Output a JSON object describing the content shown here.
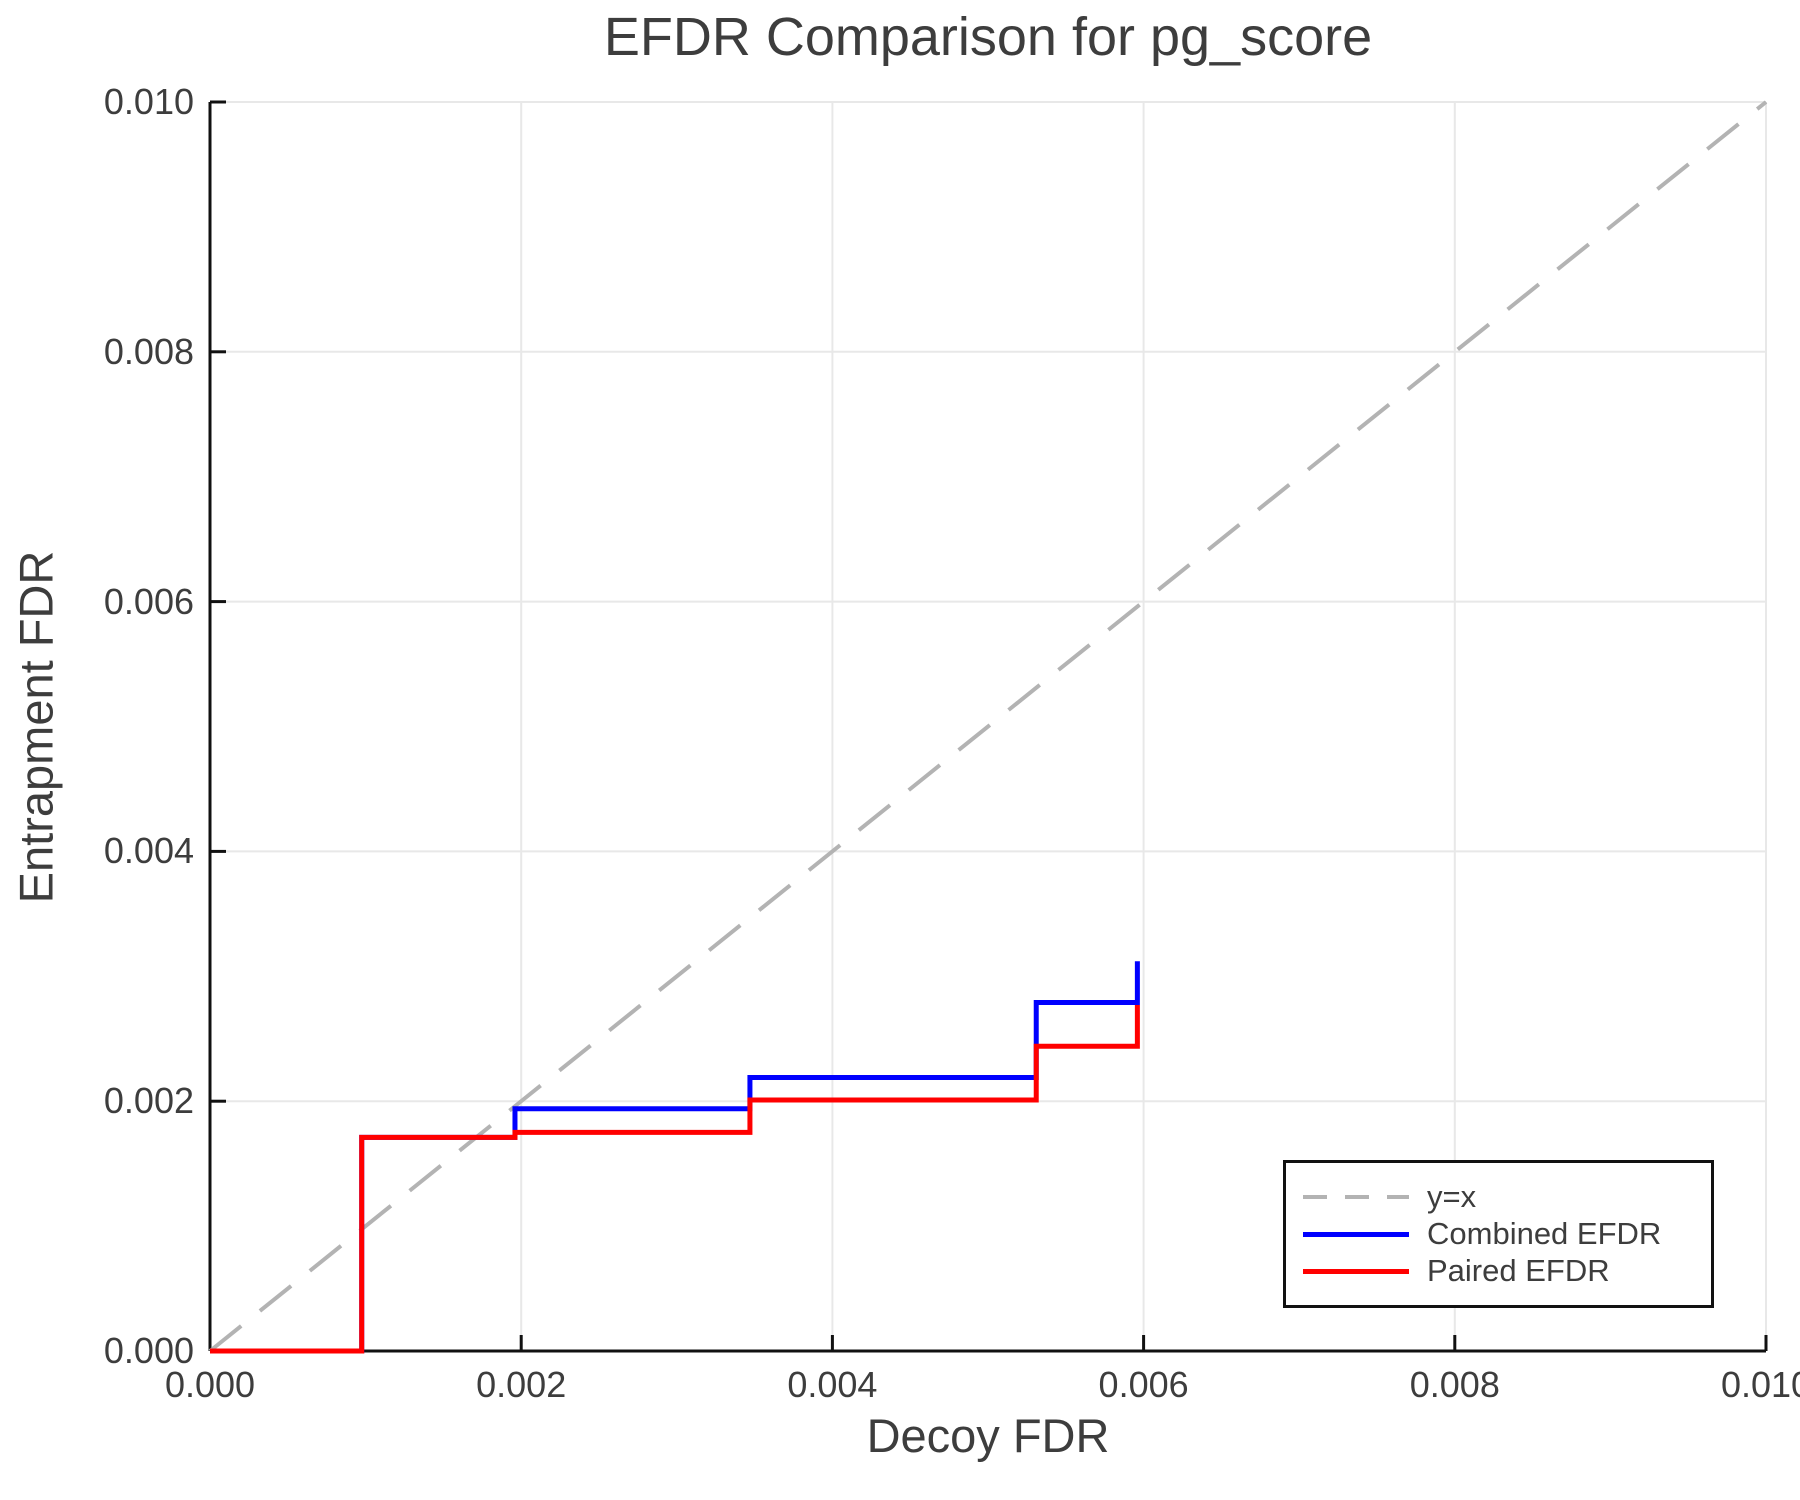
{
  "chart_data": {
    "type": "line",
    "title": "EFDR Comparison for pg_score",
    "xlabel": "Decoy FDR",
    "ylabel": "Entrapment FDR",
    "xlim": [
      0,
      0.01
    ],
    "ylim": [
      0,
      0.01
    ],
    "grid": true,
    "legend_position": "bottom-right",
    "x_tick_values": [
      0,
      0.002,
      0.004,
      0.006,
      0.008,
      0.01
    ],
    "x_tick_labels": [
      "0.000",
      "0.002",
      "0.004",
      "0.006",
      "0.008",
      "0.010"
    ],
    "y_tick_values": [
      0,
      0.002,
      0.004,
      0.006,
      0.008,
      0.01
    ],
    "y_tick_labels": [
      "0.000",
      "0.002",
      "0.004",
      "0.006",
      "0.008",
      "0.010"
    ],
    "colors": {
      "grid": "#e8e8e8",
      "axis": "#111111",
      "text": "#3d3d3d"
    },
    "series": [
      {
        "name": "y=x",
        "kind": "reference-diagonal",
        "line_style": "dashed",
        "color": "#b3b3b3",
        "points": [
          [
            0,
            0
          ],
          [
            0.01,
            0.01
          ]
        ]
      },
      {
        "name": "Combined EFDR",
        "kind": "step",
        "line_style": "solid",
        "color": "#0000ff",
        "points": [
          [
            0,
            0
          ],
          [
            0.000975,
            0
          ],
          [
            0.000975,
            0.00171
          ],
          [
            0.00196,
            0.00171
          ],
          [
            0.00196,
            0.00194
          ],
          [
            0.00347,
            0.00194
          ],
          [
            0.00347,
            0.00219
          ],
          [
            0.00531,
            0.00219
          ],
          [
            0.00531,
            0.00279
          ],
          [
            0.00596,
            0.00279
          ],
          [
            0.00596,
            0.00312
          ]
        ]
      },
      {
        "name": "Paired EFDR",
        "kind": "step",
        "line_style": "solid",
        "color": "#ff0000",
        "points": [
          [
            0,
            0
          ],
          [
            0.000975,
            0
          ],
          [
            0.000975,
            0.00171
          ],
          [
            0.00196,
            0.00171
          ],
          [
            0.00196,
            0.00175
          ],
          [
            0.00347,
            0.00175
          ],
          [
            0.00347,
            0.00201
          ],
          [
            0.00531,
            0.00201
          ],
          [
            0.00531,
            0.00244
          ],
          [
            0.00596,
            0.00244
          ],
          [
            0.00596,
            0.00277
          ]
        ]
      }
    ]
  }
}
